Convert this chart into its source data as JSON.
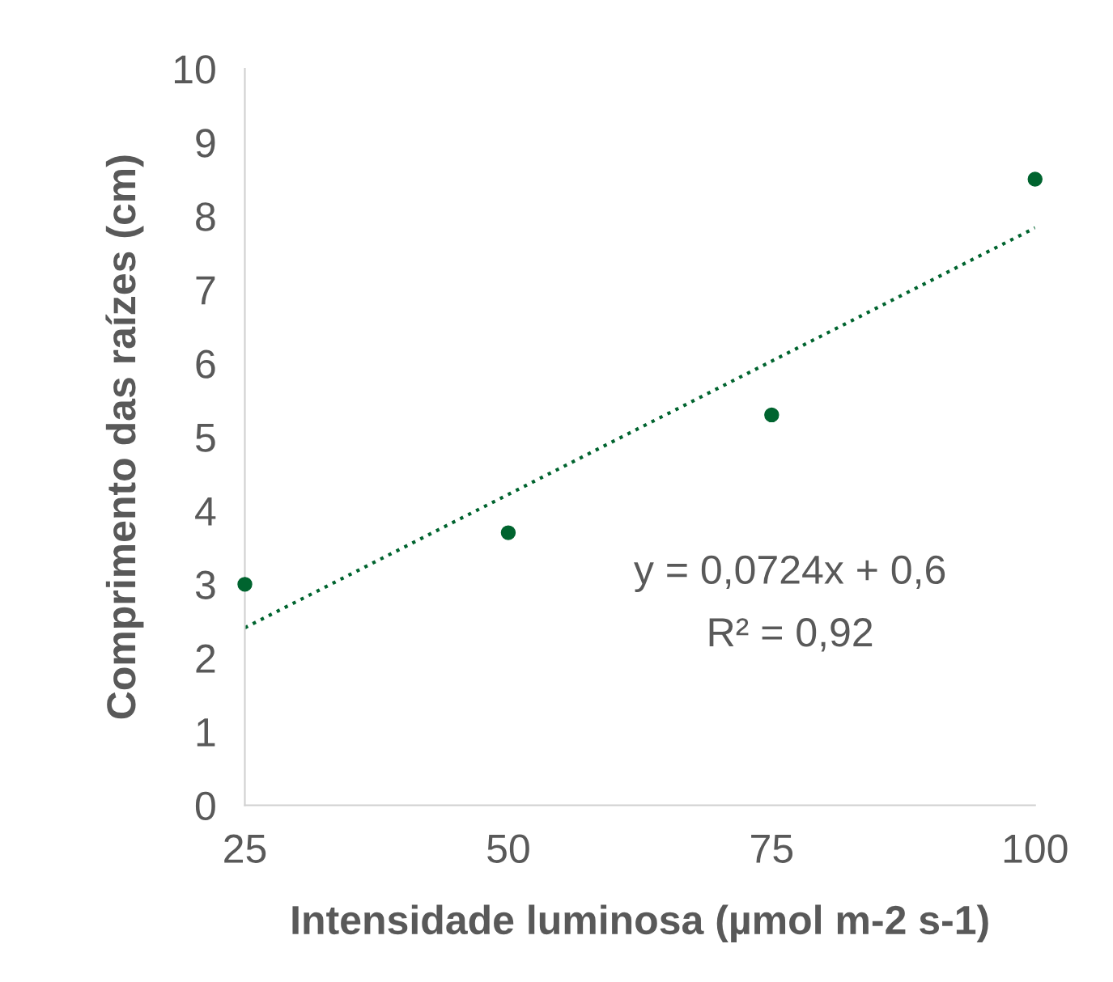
{
  "chart_data": {
    "type": "scatter",
    "xlabel": "Intensidade luminosa (µmol m-2 s-1)",
    "ylabel": "Comprimento das raízes (cm)",
    "xlim": [
      25,
      100
    ],
    "xticks": [
      25,
      50,
      75,
      100
    ],
    "ylim": [
      0,
      10
    ],
    "yticks": [
      0,
      1,
      2,
      3,
      4,
      5,
      6,
      7,
      8,
      9,
      10
    ],
    "grid": false,
    "legend": false,
    "series": [
      {
        "color": "#00642f",
        "marker": "circle",
        "x": [
          25,
          50,
          75,
          100
        ],
        "values": [
          3.0,
          3.7,
          5.3,
          8.5
        ]
      },
      {
        "type": "line",
        "color": "#00642f",
        "marker": "none",
        "line_style": "dotted",
        "x": [
          25,
          100
        ],
        "values": [
          2.41,
          7.84
        ]
      }
    ],
    "annotations": [
      "y = 0,0724x + 0,6",
      "R² = 0,92"
    ]
  }
}
